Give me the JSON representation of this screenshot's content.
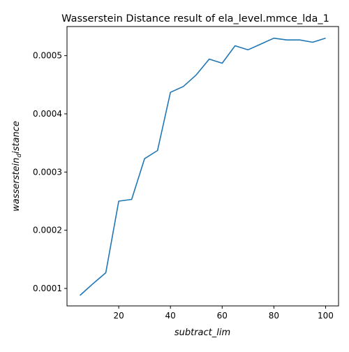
{
  "chart_data": {
    "type": "line",
    "title": "Wasserstein Distance result of ela_level.mmce_lda_1",
    "xlabel": "subtract_lim",
    "ylabel_main": "wasserstein",
    "ylabel_sub": "d",
    "ylabel_tail": "istance",
    "xlim": [
      0,
      105
    ],
    "ylim": [
      7e-05,
      0.00055
    ],
    "xticks": [
      20,
      40,
      60,
      80,
      100
    ],
    "yticks": [
      0.0001,
      0.0002,
      0.0003,
      0.0004,
      0.0005
    ],
    "ytick_labels": [
      "0.0001",
      "0.0002",
      "0.0003",
      "0.0004",
      "0.0005"
    ],
    "grid": false,
    "line_color": "#1f77b4",
    "series": [
      {
        "x": [
          5,
          10,
          15,
          20,
          25,
          30,
          35,
          40,
          45,
          50,
          55,
          60,
          65,
          70,
          75,
          80,
          85,
          90,
          95,
          100
        ],
        "values": [
          8.8e-05,
          0.000108,
          0.000127,
          0.00025,
          0.000253,
          0.000323,
          0.000337,
          0.000437,
          0.000447,
          0.000467,
          0.000494,
          0.000487,
          0.000517,
          0.00051,
          0.00052,
          0.00053,
          0.000527,
          0.000527,
          0.000523,
          0.00053
        ]
      }
    ]
  }
}
